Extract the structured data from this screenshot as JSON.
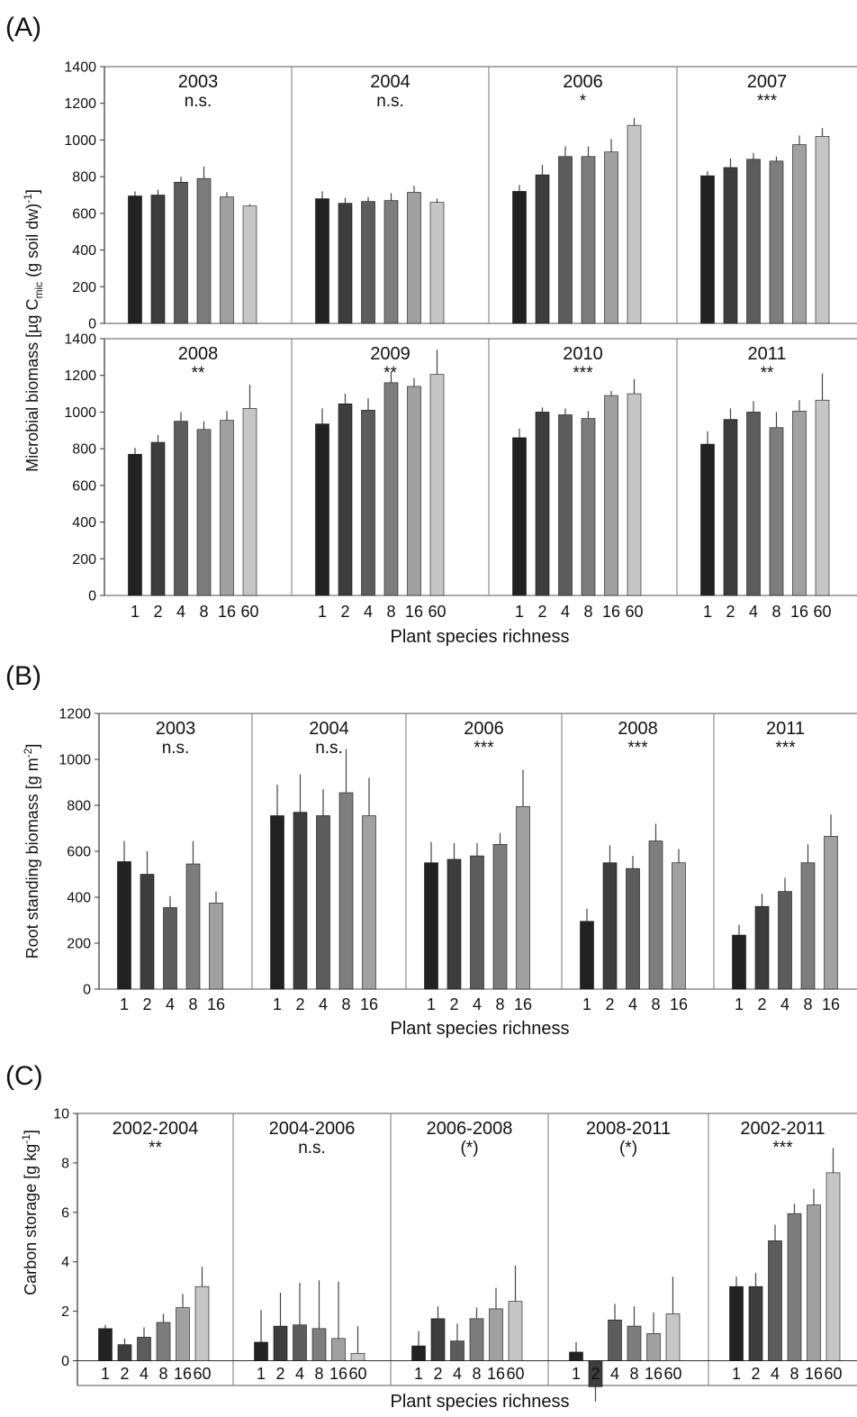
{
  "chart_data": [
    {
      "panel_label": "(A)",
      "type": "bar",
      "ylabel_main": "Microbial biomass [µg C",
      "ylabel_sub": "mic",
      "ylabel_mid": " (g soil dw)",
      "ylabel_sup": "-1",
      "ylabel_end": "]",
      "xlabel": "Plant species richness",
      "ylim": [
        0,
        1400
      ],
      "yticks": [
        0,
        200,
        400,
        600,
        800,
        1000,
        1200,
        1400
      ],
      "categories": [
        "1",
        "2",
        "4",
        "8",
        "16",
        "60"
      ],
      "colors": [
        "#222222",
        "#3d3d3d",
        "#5c5c5c",
        "#7d7d7d",
        "#a0a0a0",
        "#c6c6c6"
      ],
      "subplots": [
        {
          "title": "2003",
          "significance": "n.s.",
          "values": [
            695,
            700,
            770,
            790,
            690,
            640
          ],
          "errors": [
            25,
            30,
            30,
            65,
            25,
            10
          ]
        },
        {
          "title": "2004",
          "significance": "n.s.",
          "values": [
            680,
            655,
            665,
            670,
            715,
            660
          ],
          "errors": [
            40,
            30,
            25,
            40,
            35,
            20
          ]
        },
        {
          "title": "2006",
          "significance": "*",
          "values": [
            720,
            810,
            910,
            910,
            935,
            1080
          ],
          "errors": [
            35,
            55,
            55,
            55,
            70,
            40
          ]
        },
        {
          "title": "2007",
          "significance": "***",
          "values": [
            805,
            850,
            895,
            885,
            975,
            1020
          ],
          "errors": [
            25,
            50,
            35,
            25,
            50,
            45
          ]
        },
        {
          "title": "2008",
          "significance": "**",
          "values": [
            770,
            835,
            950,
            905,
            955,
            1020
          ],
          "errors": [
            35,
            40,
            50,
            45,
            50,
            130
          ]
        },
        {
          "title": "2009",
          "significance": "**",
          "values": [
            935,
            1045,
            1010,
            1160,
            1140,
            1205
          ],
          "errors": [
            85,
            55,
            65,
            60,
            45,
            135
          ]
        },
        {
          "title": "2010",
          "significance": "***",
          "values": [
            860,
            1000,
            985,
            965,
            1090,
            1100
          ],
          "errors": [
            50,
            25,
            35,
            40,
            25,
            80
          ]
        },
        {
          "title": "2011",
          "significance": "**",
          "values": [
            825,
            960,
            1000,
            915,
            1005,
            1065
          ],
          "errors": [
            70,
            60,
            60,
            85,
            60,
            145
          ]
        }
      ]
    },
    {
      "panel_label": "(B)",
      "type": "bar",
      "ylabel_main": "Root standing biomass [g m",
      "ylabel_sup": "-2",
      "ylabel_end": "]",
      "xlabel": "Plant species richness",
      "ylim": [
        0,
        1200
      ],
      "yticks": [
        0,
        200,
        400,
        600,
        800,
        1000,
        1200
      ],
      "categories": [
        "1",
        "2",
        "4",
        "8",
        "16"
      ],
      "colors": [
        "#222222",
        "#3d3d3d",
        "#5c5c5c",
        "#7d7d7d",
        "#a0a0a0"
      ],
      "subplots": [
        {
          "title": "2003",
          "significance": "n.s.",
          "values": [
            555,
            500,
            355,
            545,
            375
          ],
          "errors": [
            90,
            100,
            50,
            100,
            50
          ]
        },
        {
          "title": "2004",
          "significance": "n.s.",
          "values": [
            755,
            770,
            755,
            855,
            755
          ],
          "errors": [
            135,
            165,
            115,
            190,
            165
          ]
        },
        {
          "title": "2006",
          "significance": "***",
          "values": [
            550,
            565,
            580,
            630,
            795
          ],
          "errors": [
            90,
            70,
            55,
            50,
            160
          ]
        },
        {
          "title": "2008",
          "significance": "***",
          "values": [
            295,
            550,
            525,
            645,
            550
          ],
          "errors": [
            55,
            75,
            55,
            75,
            60
          ]
        },
        {
          "title": "2011",
          "significance": "***",
          "values": [
            235,
            360,
            425,
            550,
            665
          ],
          "errors": [
            45,
            55,
            60,
            80,
            95
          ]
        }
      ]
    },
    {
      "panel_label": "(C)",
      "type": "bar",
      "ylabel_main": "Carbon storage [g kg",
      "ylabel_sup": "-1",
      "ylabel_end": "]",
      "xlabel": "Plant species richness",
      "ylim": [
        -1,
        10
      ],
      "yticks": [
        0,
        2,
        4,
        6,
        8,
        10
      ],
      "categories": [
        "1",
        "2",
        "4",
        "8",
        "16",
        "60"
      ],
      "colors": [
        "#222222",
        "#3d3d3d",
        "#5c5c5c",
        "#7d7d7d",
        "#a0a0a0",
        "#c6c6c6"
      ],
      "subplots": [
        {
          "title": "2002-2004",
          "significance": "**",
          "values": [
            1.3,
            0.65,
            0.95,
            1.55,
            2.15,
            3.0
          ],
          "errors": [
            0.15,
            0.25,
            0.4,
            0.35,
            0.55,
            0.8
          ]
        },
        {
          "title": "2004-2006",
          "significance": "n.s.",
          "values": [
            0.75,
            1.4,
            1.45,
            1.3,
            0.9,
            0.3
          ],
          "errors": [
            1.3,
            1.35,
            1.7,
            1.95,
            2.3,
            1.1
          ]
        },
        {
          "title": "2006-2008",
          "significance": "(*)",
          "values": [
            0.6,
            1.7,
            0.8,
            1.7,
            2.1,
            2.4
          ],
          "errors": [
            0.6,
            0.5,
            0.7,
            0.45,
            0.85,
            1.45
          ]
        },
        {
          "title": "2008-2011",
          "significance": "(*)",
          "values": [
            0.35,
            -1.05,
            1.65,
            1.4,
            1.1,
            1.9
          ],
          "errors": [
            0.4,
            0.6,
            0.65,
            0.8,
            0.85,
            1.5
          ]
        },
        {
          "title": "2002-2011",
          "significance": "***",
          "values": [
            3.0,
            3.0,
            4.85,
            5.95,
            6.3,
            7.6
          ],
          "errors": [
            0.4,
            0.55,
            0.65,
            0.4,
            0.65,
            1.0
          ]
        }
      ]
    }
  ]
}
